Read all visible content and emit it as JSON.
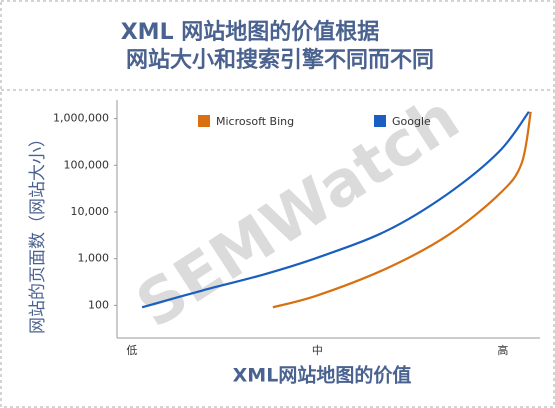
{
  "chart_data": {
    "type": "line",
    "title": [
      "XML 网站地图的价值根据",
      "网站大小和搜索引擎不同而不同"
    ],
    "x_label": "XML网站地图的价值",
    "y_label": "网站的页面数（网站大小）",
    "watermark": "SEMWatch",
    "log_y": true,
    "xlim": [
      -0.08,
      2.2
    ],
    "xticks": [
      {
        "value": 0,
        "label": "低"
      },
      {
        "value": 1,
        "label": "中"
      },
      {
        "value": 2,
        "label": "高"
      }
    ],
    "ylim": [
      20,
      2500000
    ],
    "yticks": [
      100,
      {
        "value": 1000,
        "label": "1,000"
      },
      {
        "value": 10000,
        "label": "10,000"
      },
      {
        "value": 100000,
        "label": "100,000"
      },
      {
        "value": 1000000,
        "label": "1,000,000"
      }
    ],
    "series": [
      {
        "name": "Microsoft Bing",
        "color": "#d9700f",
        "x": [
          0.76,
          1.0,
          1.37,
          1.7,
          1.98,
          2.1,
          2.15
        ],
        "values": [
          91,
          163,
          610,
          3100,
          24000,
          107000,
          1400000
        ]
      },
      {
        "name": "Google",
        "color": "#1a5fbf",
        "x": [
          0.055,
          0.38,
          0.71,
          1.0,
          1.37,
          1.7,
          1.98,
          2.14
        ],
        "values": [
          91,
          208,
          457,
          1050,
          3900,
          24000,
          197000,
          1400000
        ]
      }
    ]
  }
}
